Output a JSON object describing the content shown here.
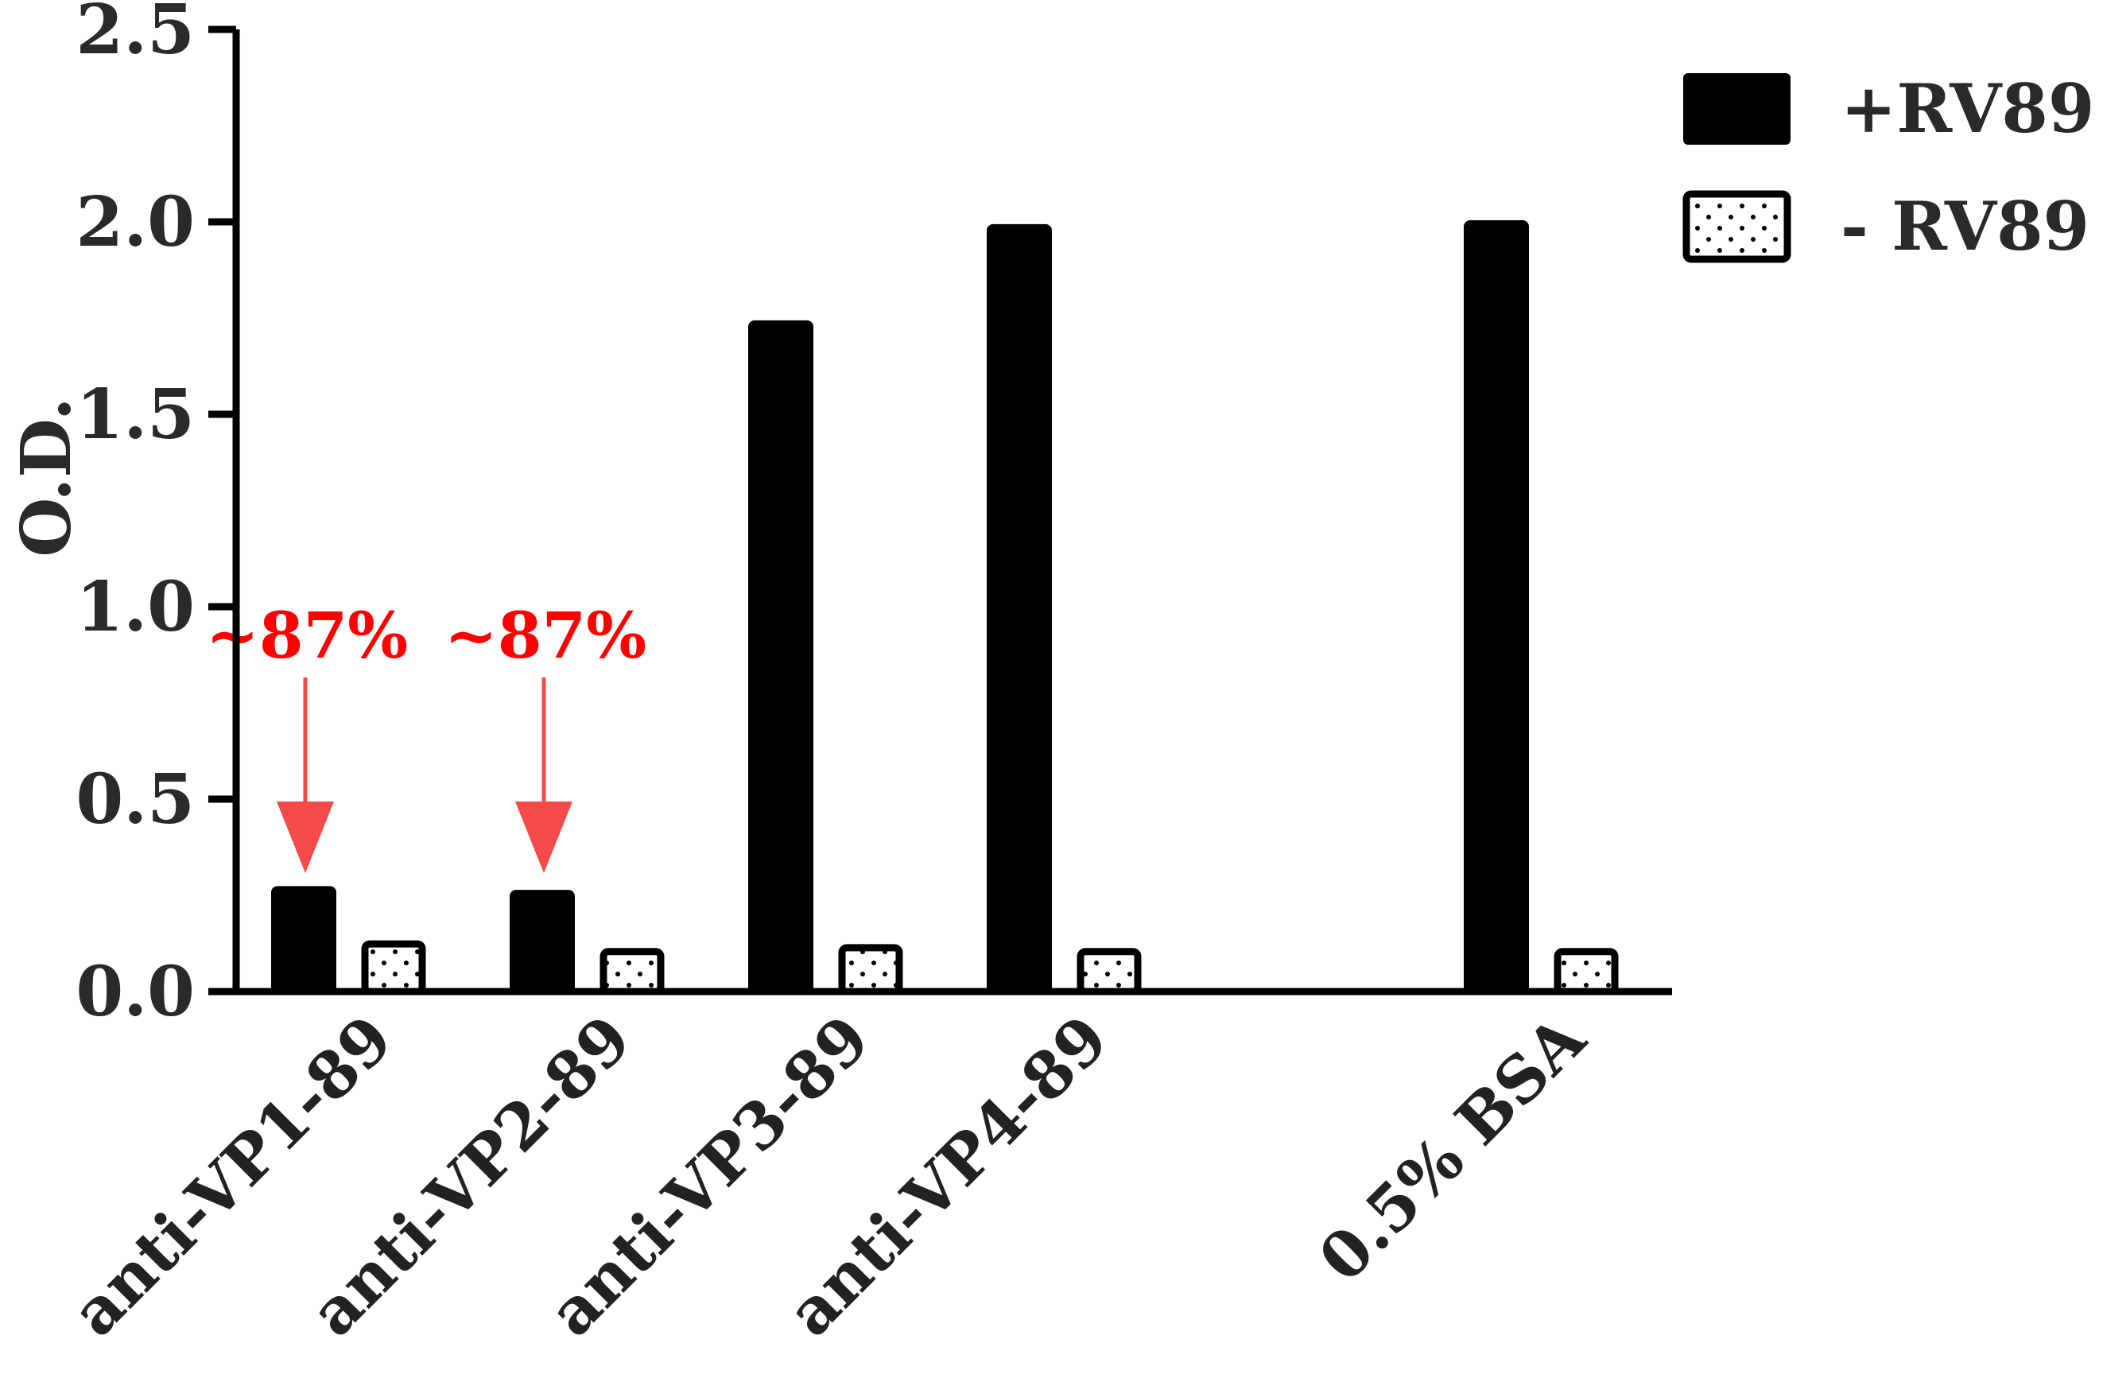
{
  "chart_data": {
    "type": "bar",
    "ylabel": "O.D.",
    "ylim": [
      0,
      2.5
    ],
    "yticks": [
      "0.0",
      "0.5",
      "1.0",
      "1.5",
      "2.0",
      "2.5"
    ],
    "categories": [
      "anti-VP1-89",
      "anti-VP2-89",
      "anti-VP3-89",
      "anti-VP4-89",
      "0.5% BSA"
    ],
    "series": [
      {
        "name": "+RV89",
        "values": [
          0.27,
          0.26,
          1.74,
          1.99,
          2.0
        ],
        "color": "#000000",
        "pattern": "solid"
      },
      {
        "name": "- RV89",
        "values": [
          0.13,
          0.11,
          0.12,
          0.11,
          0.11
        ],
        "color": "#ffffff",
        "pattern": "dotted"
      }
    ],
    "annotations": [
      {
        "text": "~87%",
        "category": "anti-VP1-89",
        "color": "#ff0000",
        "arrow_color": "#f44a4a"
      },
      {
        "text": "~87%",
        "category": "anti-VP2-89",
        "color": "#ff0000",
        "arrow_color": "#f44a4a"
      }
    ],
    "legend_position": "top-right",
    "grid": false
  }
}
